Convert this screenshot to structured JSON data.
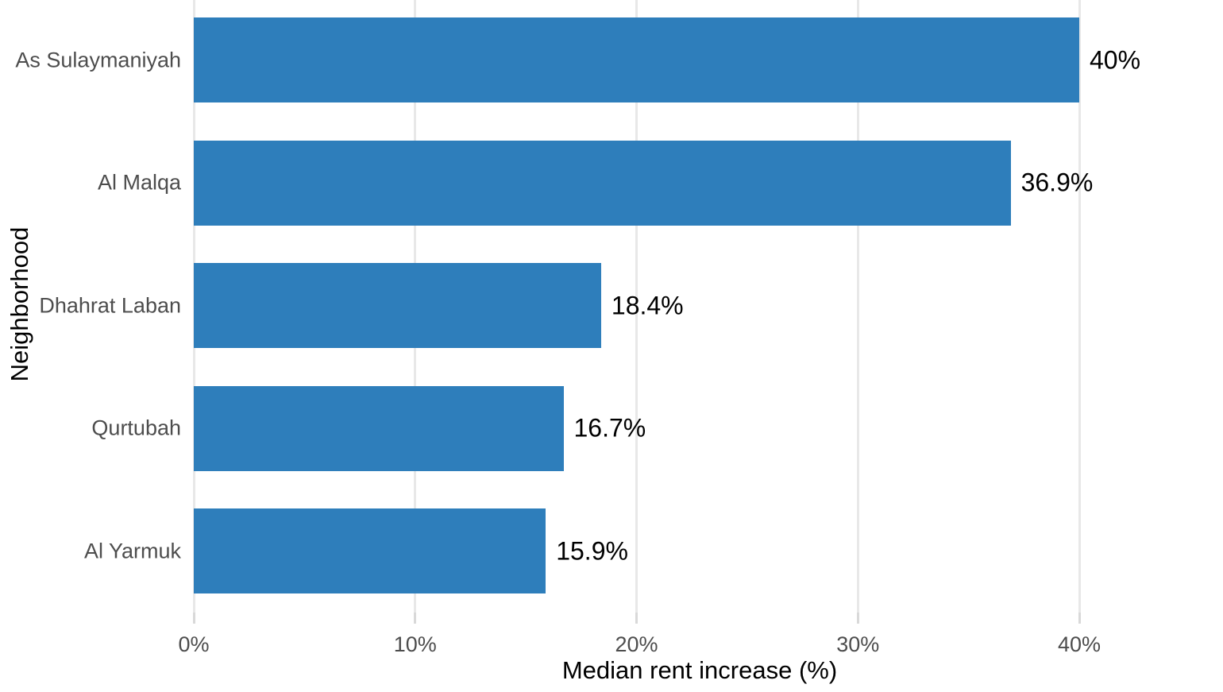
{
  "chart_data": {
    "type": "bar",
    "orientation": "horizontal",
    "categories": [
      "As Sulaymaniyah",
      "Al Malqa",
      "Dhahrat Laban",
      "Qurtubah",
      "Al Yarmuk"
    ],
    "values": [
      40,
      36.9,
      18.4,
      16.7,
      15.9
    ],
    "value_labels": [
      "40%",
      "36.9%",
      "18.4%",
      "16.7%",
      "15.9%"
    ],
    "xlabel": "Median rent increase (%)",
    "ylabel": "Neighborhood",
    "x_ticks": {
      "values": [
        0,
        10,
        20,
        30,
        40
      ],
      "labels": [
        "0%",
        "10%",
        "20%",
        "30%",
        "40%"
      ]
    },
    "xlim": [
      0,
      45.9
    ],
    "grid": "vertical major gridlines only, no minor, no panel border, no axis lines",
    "legend": "none",
    "colors": {
      "bar": "#2E7EBB",
      "gridline": "#E8E8E8",
      "tick_mark": "#D9D9D9",
      "axis_text": "#4D4D4D",
      "value_label": "#000000",
      "axis_title": "#000000",
      "background": "#FFFFFF"
    }
  }
}
